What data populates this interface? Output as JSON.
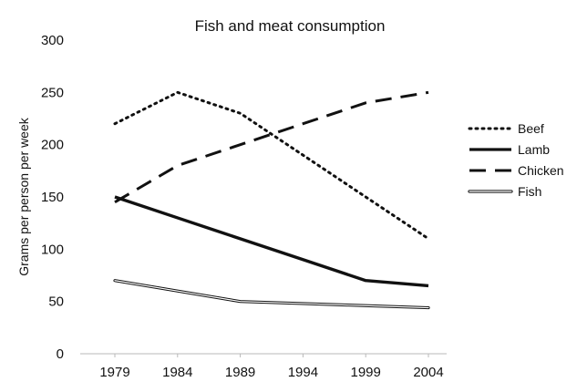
{
  "chart_data": {
    "type": "line",
    "title": "Fish and meat consumption",
    "xlabel": "",
    "ylabel": "Grams per person per week",
    "x": [
      "1979",
      "1984",
      "1989",
      "1994",
      "1999",
      "2004"
    ],
    "ylim": [
      0,
      300
    ],
    "yticks": [
      "0",
      "50",
      "100",
      "150",
      "200",
      "250",
      "300"
    ],
    "grid": false,
    "legend_position": "right",
    "series": [
      {
        "name": "Beef",
        "style": "dotted",
        "color": "#111111",
        "values": [
          220,
          250,
          230,
          190,
          150,
          110
        ]
      },
      {
        "name": "Lamb",
        "style": "solid",
        "color": "#111111",
        "values": [
          150,
          130,
          110,
          90,
          70,
          65
        ]
      },
      {
        "name": "Chicken",
        "style": "dashed",
        "color": "#111111",
        "values": [
          145,
          180,
          200,
          220,
          240,
          250
        ]
      },
      {
        "name": "Fish",
        "style": "double",
        "color": "#111111",
        "values": [
          70,
          60,
          50,
          48,
          46,
          44
        ]
      }
    ]
  }
}
